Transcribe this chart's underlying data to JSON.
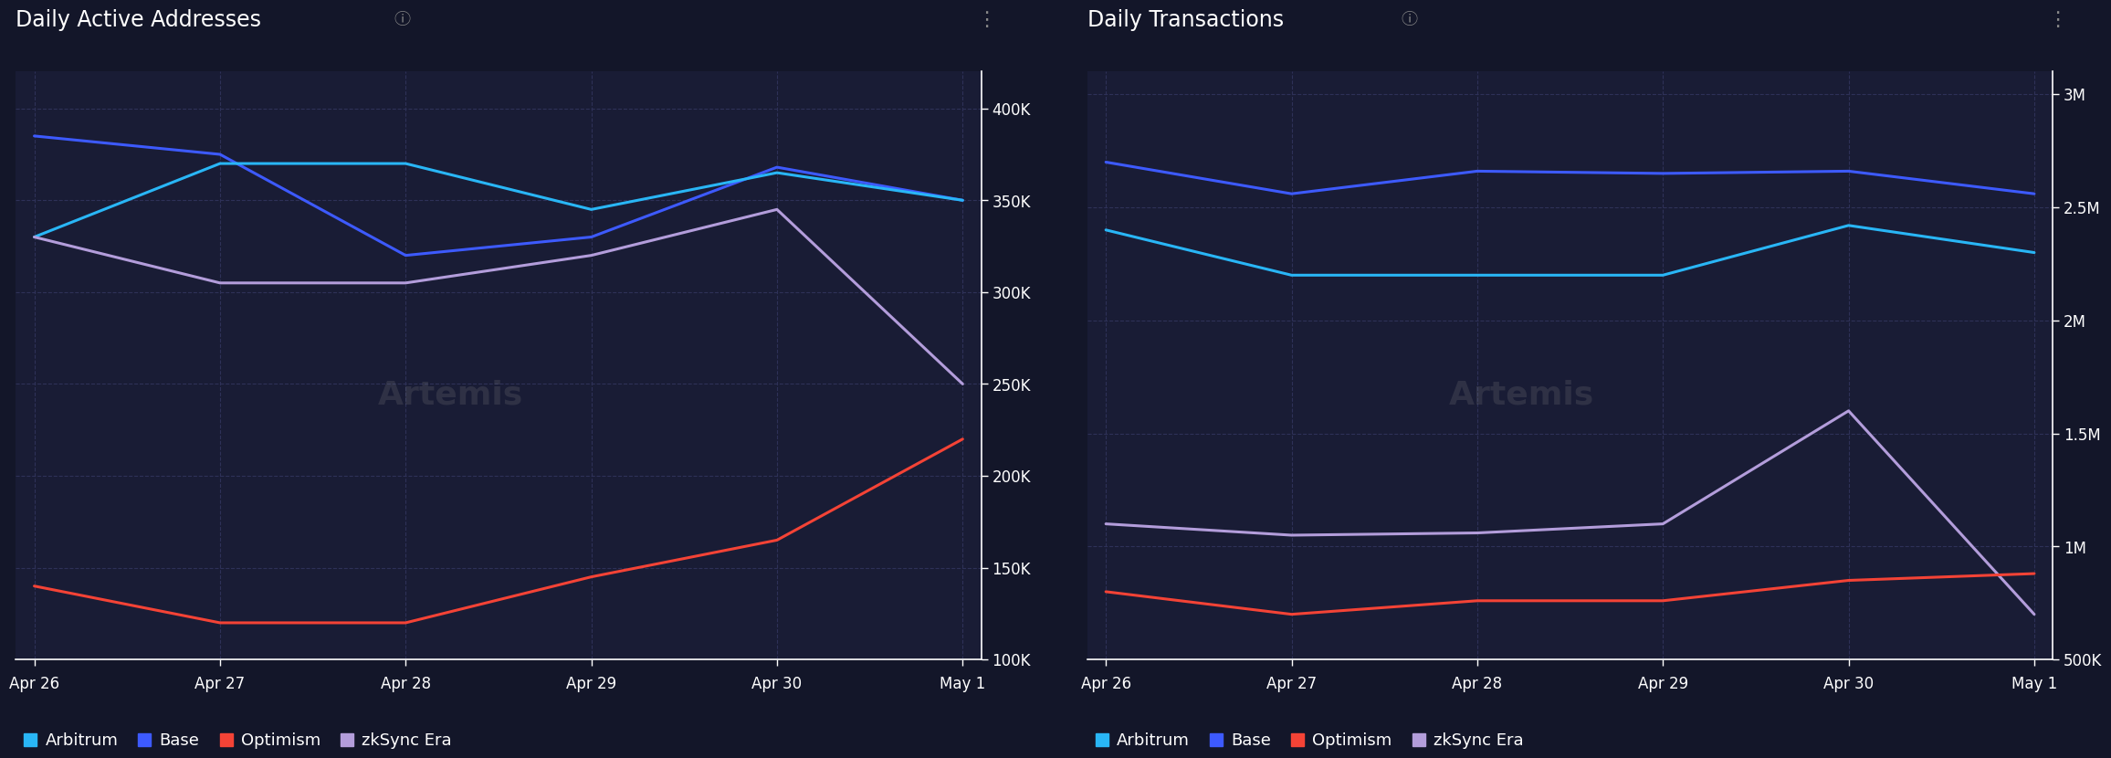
{
  "title_left": "Daily Active Addresses",
  "title_right": "Daily Transactions",
  "x_labels": [
    "Apr 26",
    "Apr 27",
    "Apr 28",
    "Apr 29",
    "Apr 30",
    "May 1"
  ],
  "left": {
    "arbitrum": [
      330000,
      370000,
      370000,
      345000,
      365000,
      350000
    ],
    "base": [
      385000,
      375000,
      320000,
      330000,
      368000,
      350000
    ],
    "optimism": [
      140000,
      120000,
      120000,
      145000,
      165000,
      220000
    ],
    "zksync": [
      330000,
      305000,
      305000,
      320000,
      345000,
      250000
    ]
  },
  "right": {
    "arbitrum": [
      2400000,
      2200000,
      2200000,
      2200000,
      2420000,
      2300000
    ],
    "base": [
      2700000,
      2560000,
      2660000,
      2650000,
      2660000,
      2560000
    ],
    "optimism": [
      800000,
      700000,
      760000,
      760000,
      850000,
      880000
    ],
    "zksync": [
      1100000,
      1050000,
      1060000,
      1100000,
      1600000,
      700000
    ]
  },
  "left_ylim": [
    100000,
    420000
  ],
  "left_yticks": [
    100000,
    150000,
    200000,
    250000,
    300000,
    350000,
    400000
  ],
  "right_ylim": [
    500000,
    3100000
  ],
  "right_yticks": [
    500000,
    1000000,
    1500000,
    2000000,
    2500000,
    3000000
  ],
  "colors": {
    "arbitrum": "#29B6F6",
    "base": "#3D5AFE",
    "optimism": "#F44336",
    "zksync": "#B39DDB"
  },
  "bg_color": "#131629",
  "panel_color": "#191C35",
  "text_color": "#FFFFFF",
  "grid_color": "#2E3158",
  "title_fontsize": 17,
  "legend_fontsize": 13,
  "tick_fontsize": 12,
  "line_width": 2.2
}
